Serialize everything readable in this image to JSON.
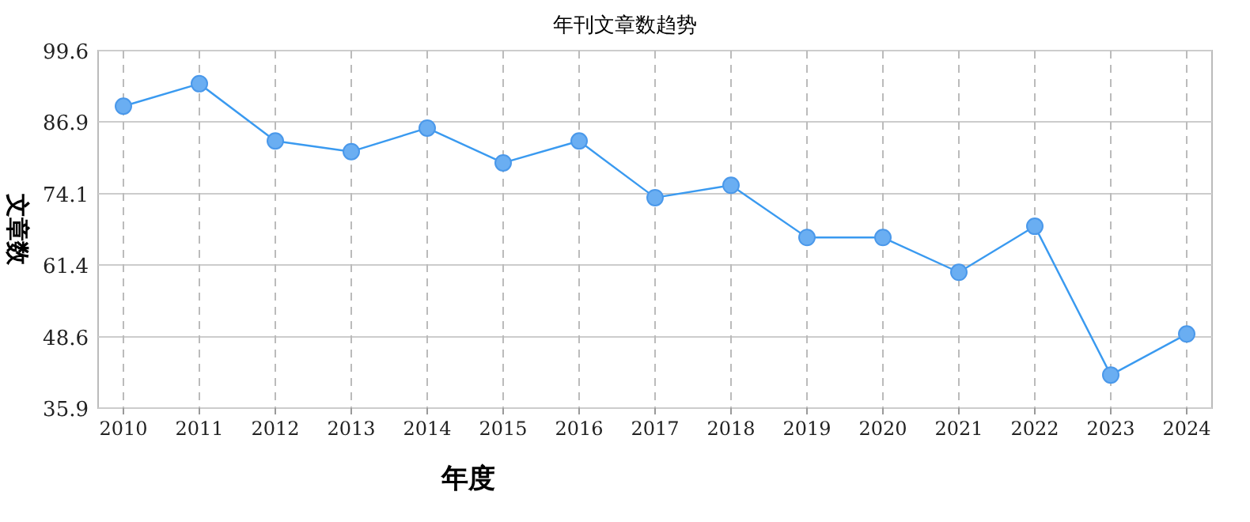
{
  "chart_data": {
    "type": "line",
    "title": "年刊文章数趋势",
    "xlabel": "年度",
    "ylabel": "文章数",
    "categories": [
      "2010",
      "2011",
      "2012",
      "2013",
      "2014",
      "2015",
      "2016",
      "2017",
      "2018",
      "2019",
      "2020",
      "2021",
      "2022",
      "2023",
      "2024"
    ],
    "series": [
      {
        "color": "#3a9af0",
        "values": [
          89.7,
          93.7,
          83.5,
          81.6,
          85.8,
          79.6,
          83.5,
          73.4,
          75.6,
          66.3,
          66.3,
          60.1,
          68.3,
          41.8,
          49.1
        ]
      }
    ],
    "ylim": [
      35.9,
      99.6
    ],
    "yticks": [
      35.9,
      48.6,
      61.4,
      74.1,
      86.9,
      99.6
    ],
    "grid": true,
    "marker": "circle",
    "line_style": "solid"
  }
}
